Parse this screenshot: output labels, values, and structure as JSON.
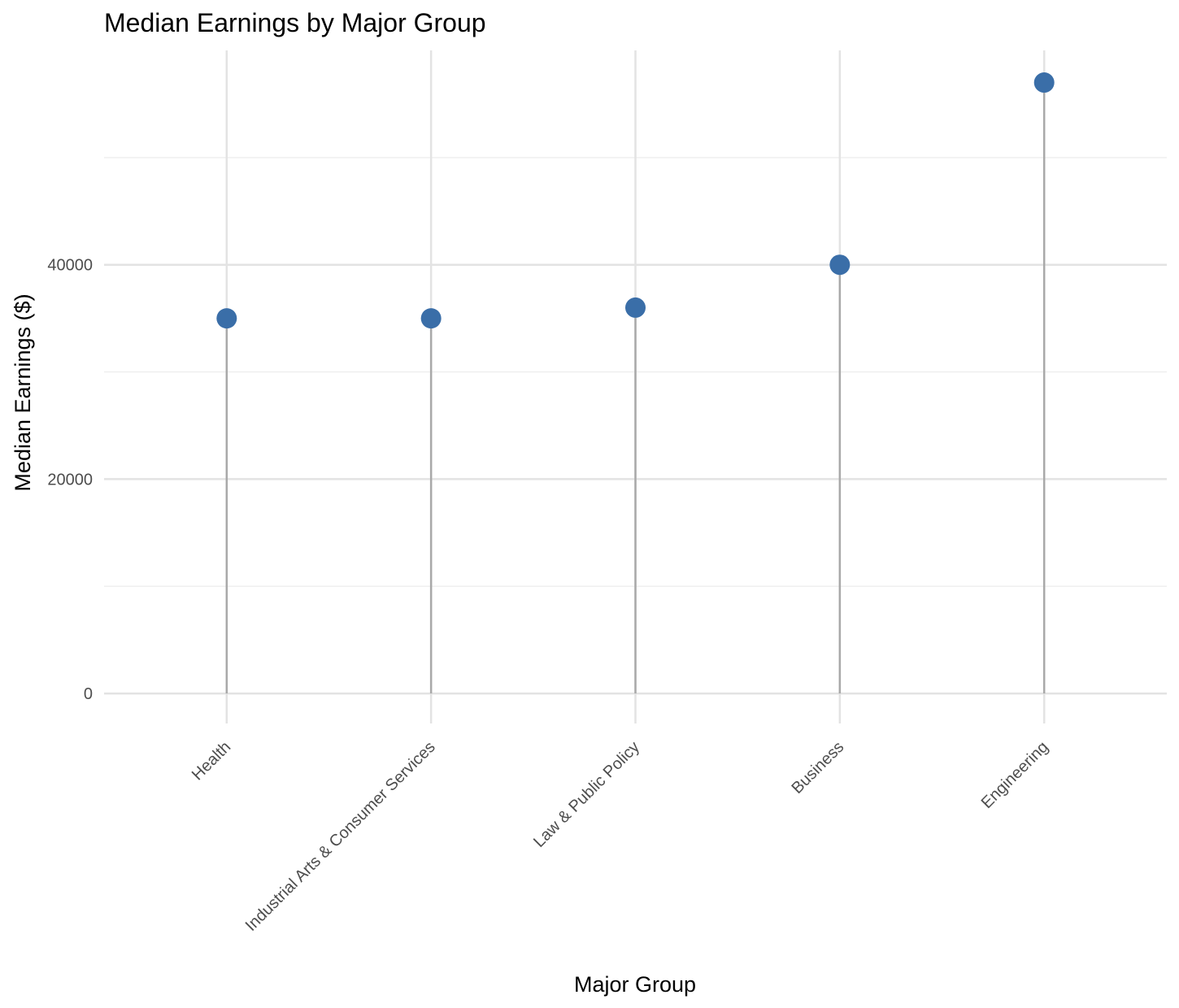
{
  "chart_data": {
    "type": "lollipop",
    "title": "Median Earnings by Major Group",
    "xlabel": "Major Group",
    "ylabel": "Median Earnings ($)",
    "categories": [
      "Health",
      "Industrial Arts & Consumer Services",
      "Law & Public Policy",
      "Business",
      "Engineering"
    ],
    "values": [
      35000,
      35000,
      36000,
      40000,
      57000
    ],
    "ylim": [
      -2800,
      60000
    ],
    "yticks": [
      0,
      20000,
      40000
    ],
    "yticks_labels": [
      "0",
      "20000",
      "40000"
    ],
    "grid": true,
    "legend": "none",
    "colors": {
      "point": "#3a6ea8",
      "stem": "#a9a9a9",
      "grid_major": "#e3e3e3",
      "grid_minor": "#efefef"
    }
  }
}
